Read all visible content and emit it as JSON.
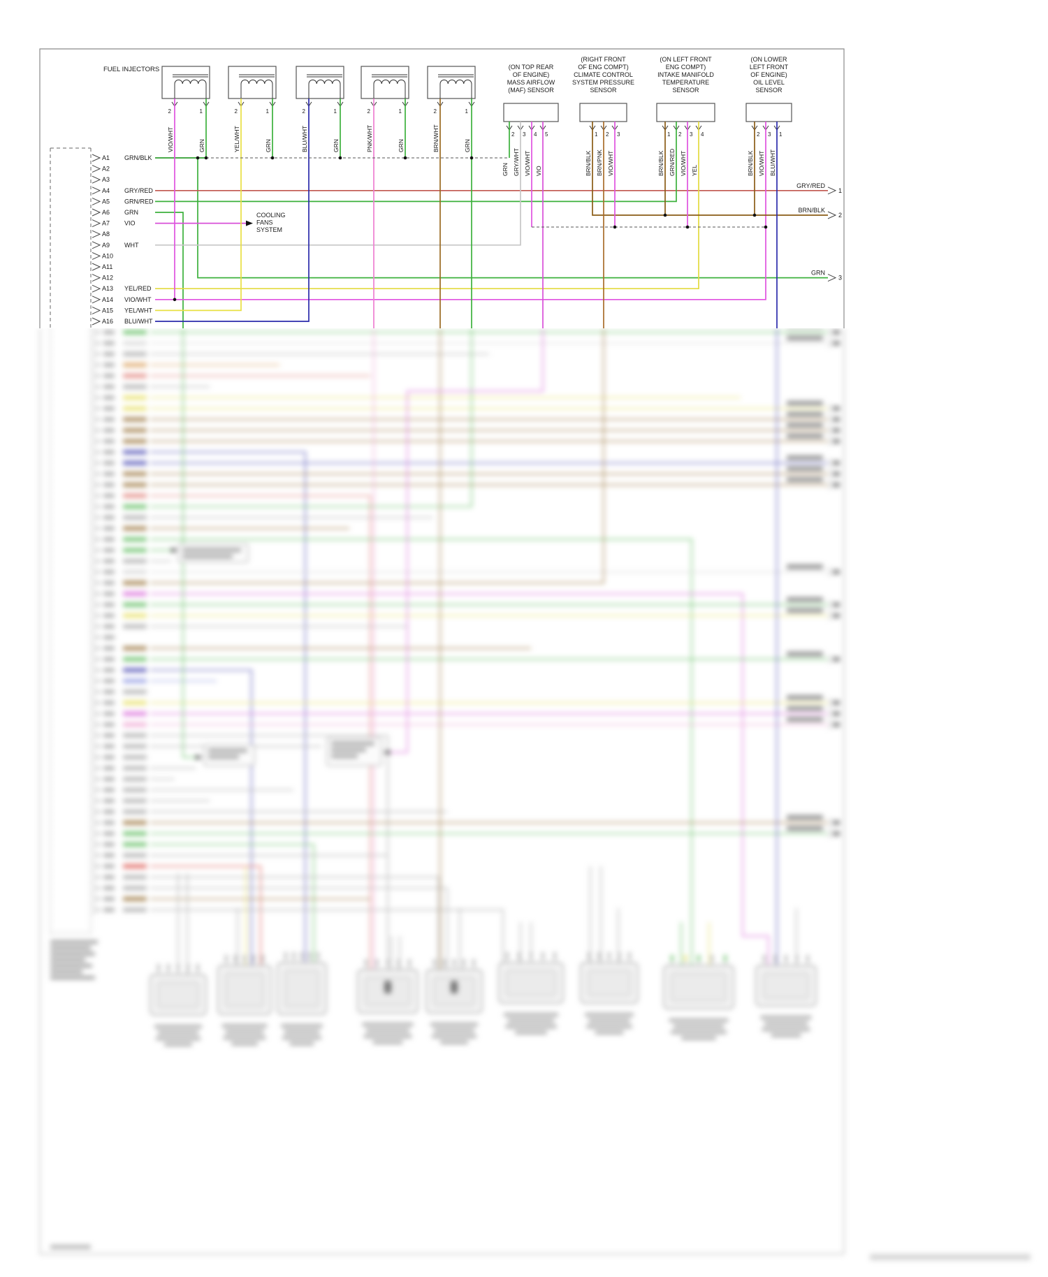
{
  "title_labels": {
    "fuel_injectors": "FUEL INJECTORS",
    "cooling_fans_system": [
      "COOLING",
      "FANS",
      "SYSTEM"
    ]
  },
  "connector_a": {
    "pins": [
      {
        "id": "A1",
        "color": "GRN/BLK"
      },
      {
        "id": "A2",
        "color": ""
      },
      {
        "id": "A3",
        "color": ""
      },
      {
        "id": "A4",
        "color": "GRY/RED"
      },
      {
        "id": "A5",
        "color": "GRN/RED"
      },
      {
        "id": "A6",
        "color": "GRN"
      },
      {
        "id": "A7",
        "color": "VIO"
      },
      {
        "id": "A8",
        "color": ""
      },
      {
        "id": "A9",
        "color": "WHT"
      },
      {
        "id": "A10",
        "color": ""
      },
      {
        "id": "A11",
        "color": ""
      },
      {
        "id": "A12",
        "color": ""
      },
      {
        "id": "A13",
        "color": "YEL/RED"
      },
      {
        "id": "A14",
        "color": "VIO/WHT"
      },
      {
        "id": "A15",
        "color": "YEL/WHT"
      },
      {
        "id": "A16",
        "color": "BLU/WHT"
      }
    ]
  },
  "injectors": [
    {
      "pin2": {
        "num": "2",
        "label": "VIO/WHT"
      },
      "pin1": {
        "num": "1",
        "label": "GRN"
      }
    },
    {
      "pin2": {
        "num": "2",
        "label": "YEL/WHT"
      },
      "pin1": {
        "num": "1",
        "label": "GRN"
      }
    },
    {
      "pin2": {
        "num": "2",
        "label": "BLU/WHT"
      },
      "pin1": {
        "num": "1",
        "label": "GRN"
      }
    },
    {
      "pin2": {
        "num": "2",
        "label": "PNK/WHT"
      },
      "pin1": {
        "num": "1",
        "label": "GRN"
      }
    },
    {
      "pin2": {
        "num": "2",
        "label": "BRN/WHT"
      },
      "pin1": {
        "num": "1",
        "label": "GRN"
      }
    }
  ],
  "sensors": [
    {
      "caption": [
        "(ON TOP REAR",
        "OF ENGINE)",
        "MASS AIRFLOW",
        "(MAF) SENSOR"
      ],
      "pins": [
        {
          "num": "2",
          "label": "GRN"
        },
        {
          "num": "3",
          "label": "GRY/WHT"
        },
        {
          "num": "4",
          "label": "VIO/WHT"
        },
        {
          "num": "5",
          "label": "VIO"
        }
      ]
    },
    {
      "caption": [
        "(RIGHT FRONT",
        "OF ENG COMPT)",
        "CLIMATE CONTROL",
        "SYSTEM PRESSURE",
        "SENSOR"
      ],
      "pins": [
        {
          "num": "1",
          "label": "BRN/BLK"
        },
        {
          "num": "2",
          "label": "BRN/PNK"
        },
        {
          "num": "3",
          "label": "VIO/WHT"
        }
      ]
    },
    {
      "caption": [
        "(ON LEFT FRONT",
        "ENG COMPT)",
        "INTAKE MANIFOLD",
        "TEMPERATURE",
        "SENSOR"
      ],
      "pins": [
        {
          "num": "1",
          "label": "BRN/BLK"
        },
        {
          "num": "2",
          "label": "GRN/RED"
        },
        {
          "num": "3",
          "label": "VIO/WHT"
        },
        {
          "num": "4",
          "label": "YEL"
        }
      ]
    },
    {
      "caption": [
        "(ON LOWER",
        "LEFT FRONT",
        "OF ENGINE)",
        "OIL LEVEL",
        "SENSOR"
      ],
      "pins": [
        {
          "num": "2",
          "label": "BRN/BLK"
        },
        {
          "num": "3",
          "label": "VIO/WHT"
        },
        {
          "num": "1",
          "label": "BLU/WHT"
        }
      ]
    }
  ],
  "right_exits": [
    {
      "label": "GRY/RED",
      "num": "1"
    },
    {
      "label": "BRN/BLK",
      "num": "2"
    },
    {
      "label": "GRN",
      "num": "3"
    }
  ],
  "wire_colors": {
    "GRN": "#3cb13c",
    "GRN/BLK": "#2f9e2f",
    "GRY/RED": "#c0564e",
    "GRN/RED": "#3cb13c",
    "VIO": "#d84fd8",
    "VIO/WHT": "#e052e0",
    "WHT": "#d6d6d6",
    "GRY/WHT": "#c6c6c6",
    "YEL": "#e3da3e",
    "YEL/RED": "#e3da3e",
    "YEL/WHT": "#e8e042",
    "BLU/WHT": "#2b2bab",
    "PNK/WHT": "#ee7fd2",
    "BRN/WHT": "#9a6a20",
    "BRN/BLK": "#8a5c16",
    "BRN/PNK": "#a86c2a"
  },
  "palette": {
    "green": "#3cb13c",
    "yellow": "#e3da3e",
    "navy": "#2b2bab",
    "blue": "#7b86e0",
    "magenta": "#d84fd8",
    "pink": "#f093cc",
    "salmon": "#e06a60",
    "red": "#dd3b33",
    "brown": "#8a5c16",
    "tan": "#c89a4a",
    "orange": "#d8903c",
    "gray": "#9a9a9a",
    "lightgray": "#cfcfcf",
    "ink": "#1a1a1a",
    "boxline": "#555555",
    "smudge": "#8a8a8a"
  }
}
